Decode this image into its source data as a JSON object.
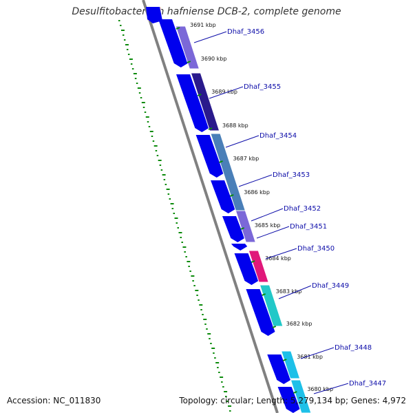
{
  "title": "Desulfitobacterium hafniense DCB-2, complete genome",
  "accession": "Accession: NC_011830",
  "topology": "Topology: circular; Length: 5,279,134 bp; Genes: 4,972",
  "colors": {
    "backbone": "#808080",
    "cds_track": "#0000ee",
    "gc_ticks": "#0a8a0a",
    "label": "#0b0ba8"
  },
  "kbp_ticks": [
    "3691 kbp",
    "3690 kbp",
    "3689 kbp",
    "3688 kbp",
    "3687 kbp",
    "3686 kbp",
    "3685 kbp",
    "3684 kbp",
    "3683 kbp",
    "3682 kbp",
    "3681 kbp",
    "3680 kbp"
  ],
  "genes": [
    {
      "label": "Dhaf_3456",
      "color": "#7b68d8"
    },
    {
      "label": "Dhaf_3455",
      "color": "#2a1a8c"
    },
    {
      "label": "Dhaf_3454",
      "color": "#4a7fb8"
    },
    {
      "label": "Dhaf_3453",
      "color": "#4a7fb8"
    },
    {
      "label": "Dhaf_3452",
      "color": "#7b68d8"
    },
    {
      "label": "Dhaf_3451",
      "color": "#7b68d8"
    },
    {
      "label": "Dhaf_3450",
      "color": "#e0187a"
    },
    {
      "label": "Dhaf_3449",
      "color": "#22c8c8"
    },
    {
      "label": "Dhaf_3448",
      "color": "#1ec0e8"
    },
    {
      "label": "Dhaf_3447",
      "color": "#1ec0e8"
    }
  ]
}
